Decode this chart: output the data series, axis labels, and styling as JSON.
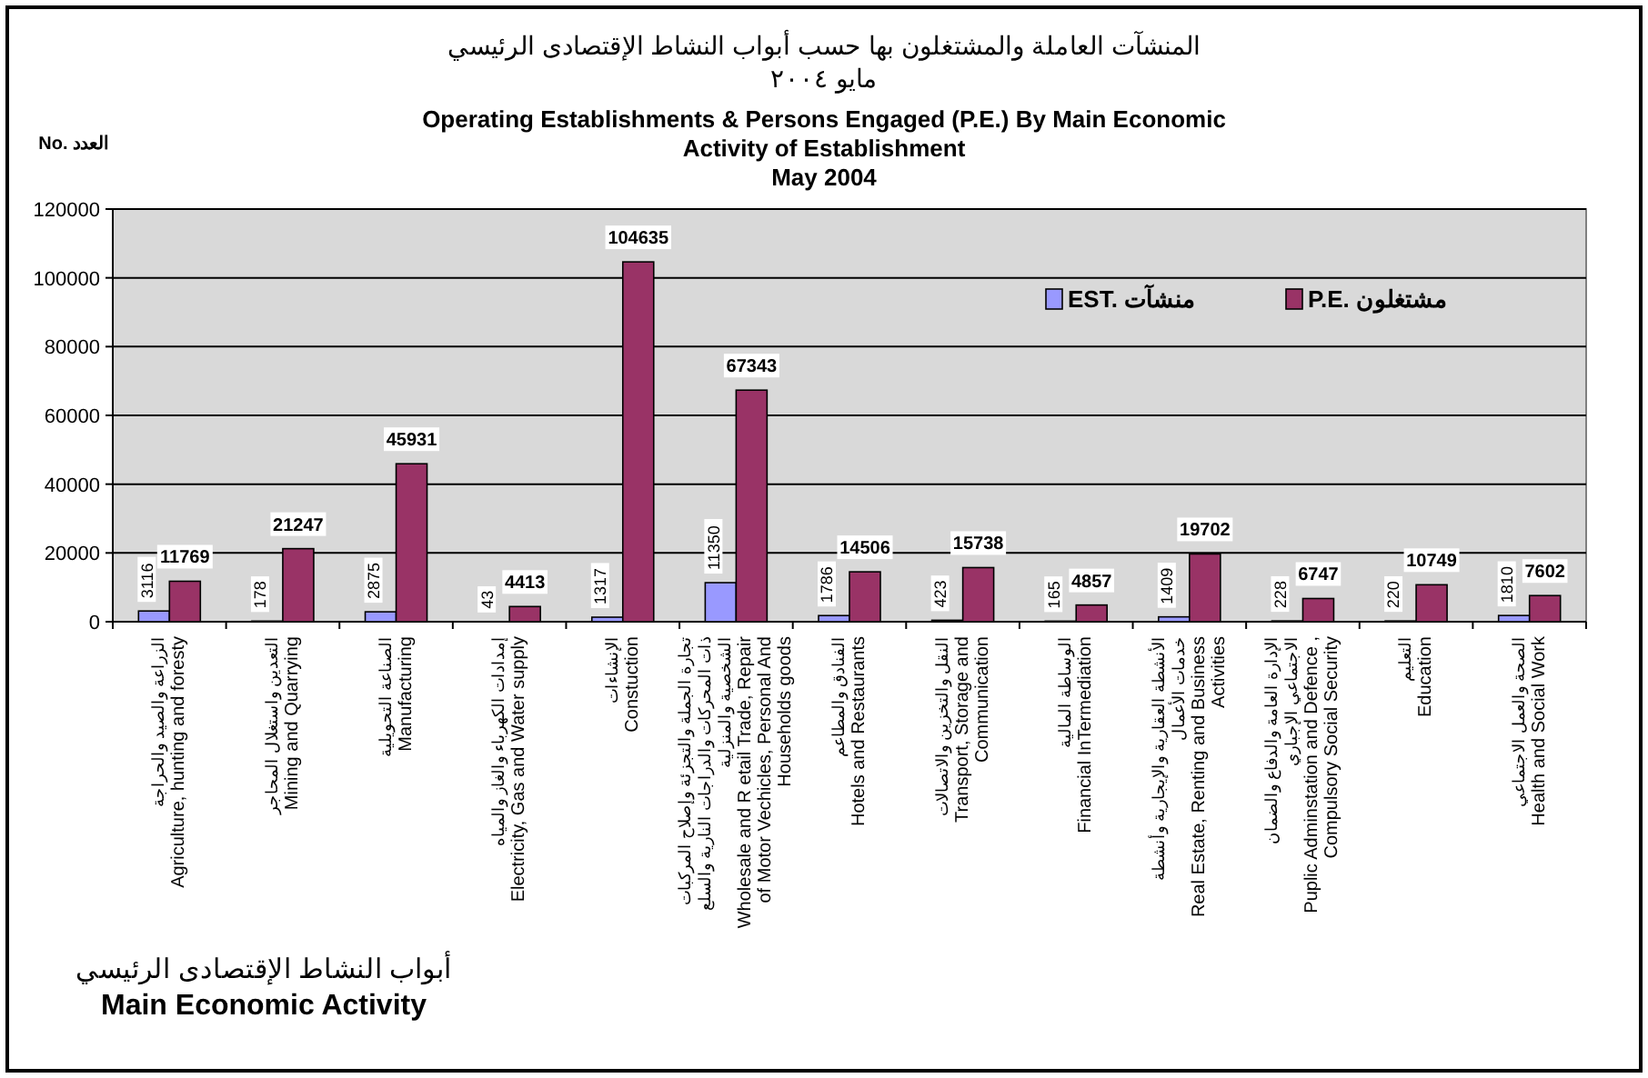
{
  "chart_data": {
    "type": "bar",
    "title": "المنشآت العاملة والمشتغلون بها حسب أبواب النشاط الإقتصادى الرئيسي\nمايو ٢٠٠٤",
    "subtitle": "Operating Establishments & Persons Engaged (P.E.) By  Main Economic Activity of Establishment\nMay 2004",
    "ylabel": "No. العدد",
    "xlabel": "أبواب النشاط الإقتصادى الرئيسي\nMain Economic Activity",
    "categories": [
      "الزراعة والصيد والحراجة\nAgriculture, hunting and foresty",
      "التعدين واستغلال المحاجر\nMining and Quarrying",
      "الصناعة التحويلية\nManufacturing",
      "إمدادات الكهرباء والغاز والمياه\nElectricity, Gas and Water supply",
      "الإنشاءات\nConstuction",
      "تجارة الجملة والتجزئة وإصلاح المركبات ذات المحركات والدراجات النارية والسلع الشخصية والمنزلية\nWholesale and R etail Trade, Repair of Motor Vechicles, Personal And Households goods",
      "الفنادق والمطاعم\nHotels and Restaurants",
      "النقل والتخزين والاتصالات\nTransport, Storage and Communication",
      "الوساطة المالية\nFinancial InTermediation",
      "الأنشطة العقارية والإيجارية وأنشطة خدمات الأعمال\nReal Estate, Renting and Business Activities",
      "الإدارة العامة والدفاع والضمان الاجتماعي الإجباري\nPuplic Adminstation and Defence , Compulsory Social Security",
      "التعليم\nEducation",
      "الصحة والعمل الاجتماعي\nHealth and Social Work"
    ],
    "series": [
      {
        "name": "EST. منشآت",
        "color": "#9999ff",
        "values": [
          3116,
          178,
          2875,
          43,
          1317,
          11350,
          1786,
          423,
          165,
          1409,
          228,
          220,
          1810
        ]
      },
      {
        "name": "P.E. مشتغلون",
        "color": "#993366",
        "values": [
          11769,
          21247,
          45931,
          4413,
          104635,
          67343,
          14506,
          15738,
          4857,
          19702,
          6747,
          10749,
          7602
        ]
      }
    ],
    "ylim": [
      0,
      120000
    ],
    "yticks": [
      0,
      20000,
      40000,
      60000,
      80000,
      100000,
      120000
    ],
    "grid": "y",
    "legend": "top right",
    "data_labels": true
  }
}
